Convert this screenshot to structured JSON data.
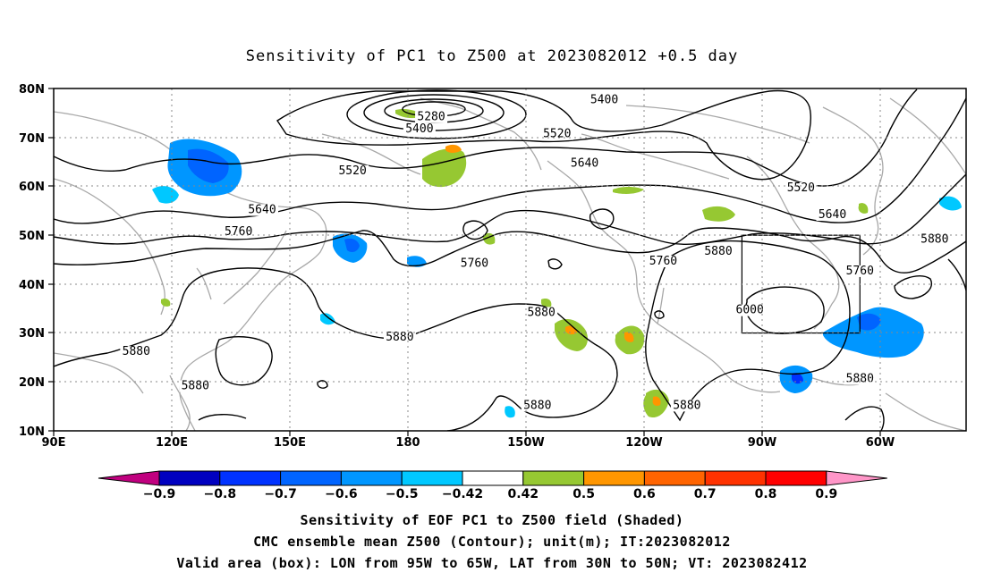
{
  "title": "Sensitivity of PC1 to Z500 at 2023082012 +0.5 day",
  "lon_ticks": [
    "90E",
    "120E",
    "150E",
    "180",
    "150W",
    "120W",
    "90W",
    "60W"
  ],
  "lat_ticks": [
    "80N",
    "70N",
    "60N",
    "50N",
    "40N",
    "30N",
    "20N",
    "10N"
  ],
  "map_extent": {
    "lon": [
      90,
      322
    ],
    "lat": [
      10,
      80
    ]
  },
  "valid_box": {
    "lon": [
      265,
      295
    ],
    "lat": [
      30,
      50
    ]
  },
  "contour_labels": [
    {
      "text": "5280",
      "lon": 186,
      "lat": 73.5
    },
    {
      "text": "5400",
      "lon": 183,
      "lat": 71
    },
    {
      "text": "5400",
      "lon": 230,
      "lat": 77
    },
    {
      "text": "5520",
      "lon": 166,
      "lat": 62.5
    },
    {
      "text": "5520",
      "lon": 218,
      "lat": 70
    },
    {
      "text": "5520",
      "lon": 280,
      "lat": 59
    },
    {
      "text": "5640",
      "lon": 143,
      "lat": 54.5
    },
    {
      "text": "5640",
      "lon": 225,
      "lat": 64
    },
    {
      "text": "5640",
      "lon": 288,
      "lat": 53.5
    },
    {
      "text": "5760",
      "lon": 137,
      "lat": 50
    },
    {
      "text": "5760",
      "lon": 197,
      "lat": 43.5
    },
    {
      "text": "5760",
      "lon": 245,
      "lat": 44
    },
    {
      "text": "5760",
      "lon": 295,
      "lat": 42
    },
    {
      "text": "5880",
      "lon": 259,
      "lat": 46
    },
    {
      "text": "5880",
      "lon": 314,
      "lat": 48.5
    },
    {
      "text": "5880",
      "lon": 111,
      "lat": 25.5
    },
    {
      "text": "5880",
      "lon": 178,
      "lat": 28.5
    },
    {
      "text": "5880",
      "lon": 126,
      "lat": 18.5
    },
    {
      "text": "5880",
      "lon": 214,
      "lat": 33.5
    },
    {
      "text": "5880",
      "lon": 213,
      "lat": 14.5
    },
    {
      "text": "5880",
      "lon": 251,
      "lat": 14.5
    },
    {
      "text": "5880",
      "lon": 295,
      "lat": 20
    },
    {
      "text": "6000",
      "lon": 267,
      "lat": 34
    }
  ],
  "colorbar": {
    "labels": [
      "-0.9",
      "-0.8",
      "-0.7",
      "-0.6",
      "-0.5",
      "-0.42",
      "0.42",
      "0.5",
      "0.6",
      "0.7",
      "0.8",
      "0.9"
    ],
    "colors": [
      "#c0007f",
      "#0000c0",
      "#0032ff",
      "#0064ff",
      "#0096ff",
      "#00c8ff",
      "#ffffff",
      "#96c832",
      "#ff9600",
      "#ff6400",
      "#ff3200",
      "#ff0000",
      "#ff96c8"
    ]
  },
  "captions": [
    "Sensitivity of EOF PC1 to Z500 field (Shaded)",
    "CMC ensemble mean Z500 (Contour); unit(m); IT:2023082012",
    "Valid area (box): LON from 95W to 65W, LAT from 30N to 50N; VT: 2023082412"
  ]
}
